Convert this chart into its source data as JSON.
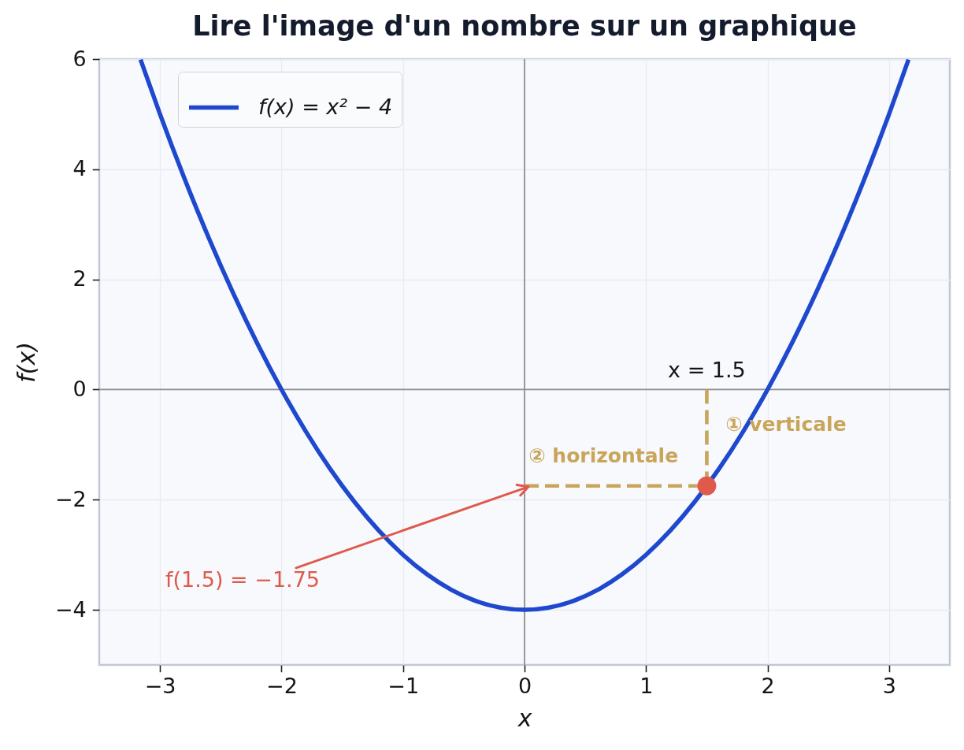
{
  "chart_data": {
    "type": "line",
    "title": "Lire l'image d'un nombre sur un graphique",
    "xlabel": "x",
    "ylabel": "f(x)",
    "xlim": [
      -3.5,
      3.5
    ],
    "ylim": [
      -5,
      6
    ],
    "xticks": [
      -3,
      -2,
      -1,
      0,
      1,
      2,
      3
    ],
    "yticks": [
      -4,
      -2,
      0,
      2,
      4,
      6
    ],
    "grid": true,
    "legend": "top left",
    "series": [
      {
        "type": "line",
        "color": "#8f8f8f",
        "x": [
          0,
          0
        ],
        "values": [
          -5,
          6
        ]
      },
      {
        "type": "line",
        "color": "#8f8f8f",
        "x": [
          -3.5,
          3.5
        ],
        "values": [
          0,
          0
        ]
      },
      {
        "name": "f(x) = x² − 4",
        "color": "#1e48cd",
        "x": [
          -3.16,
          -3,
          -2.8,
          -2.6,
          -2.4,
          -2.2,
          -2,
          -1.8,
          -1.6,
          -1.4,
          -1.2,
          -1,
          -0.8,
          -0.6,
          -0.4,
          -0.2,
          0,
          0.2,
          0.4,
          0.6,
          0.8,
          1,
          1.2,
          1.4,
          1.6,
          1.8,
          2,
          2.2,
          2.4,
          2.6,
          2.8,
          3,
          3.16
        ],
        "values": [
          5.99,
          5,
          3.84,
          2.76,
          1.76,
          0.84,
          0,
          -0.76,
          -1.44,
          -2.04,
          -2.56,
          -3,
          -3.36,
          -3.64,
          -3.84,
          -3.96,
          -4,
          -3.96,
          -3.84,
          -3.64,
          -3.36,
          -3,
          -2.56,
          -2.04,
          -1.44,
          -0.76,
          0,
          0.84,
          1.76,
          2.76,
          3.84,
          5,
          5.99
        ]
      },
      {
        "type": "line",
        "color": "#c9a55a",
        "line_style": "dashed",
        "x": [
          1.5,
          1.5
        ],
        "values": [
          0,
          -1.75
        ]
      },
      {
        "type": "line",
        "color": "#c9a55a",
        "line_style": "dashed",
        "x": [
          0,
          1.5
        ],
        "values": [
          -1.75,
          -1.75
        ]
      },
      {
        "type": "scatter",
        "marker": "circle",
        "color": "#e05a4b",
        "x": [
          1.5
        ],
        "values": [
          -1.75
        ]
      }
    ],
    "annotations": [
      {
        "text": "x = 1.5",
        "x": 1.5,
        "y": 0
      },
      "① verticale",
      {
        "text": "② horizontale",
        "x": 0.65,
        "y": -1.75
      },
      "f(1.5) = −1.75"
    ]
  }
}
